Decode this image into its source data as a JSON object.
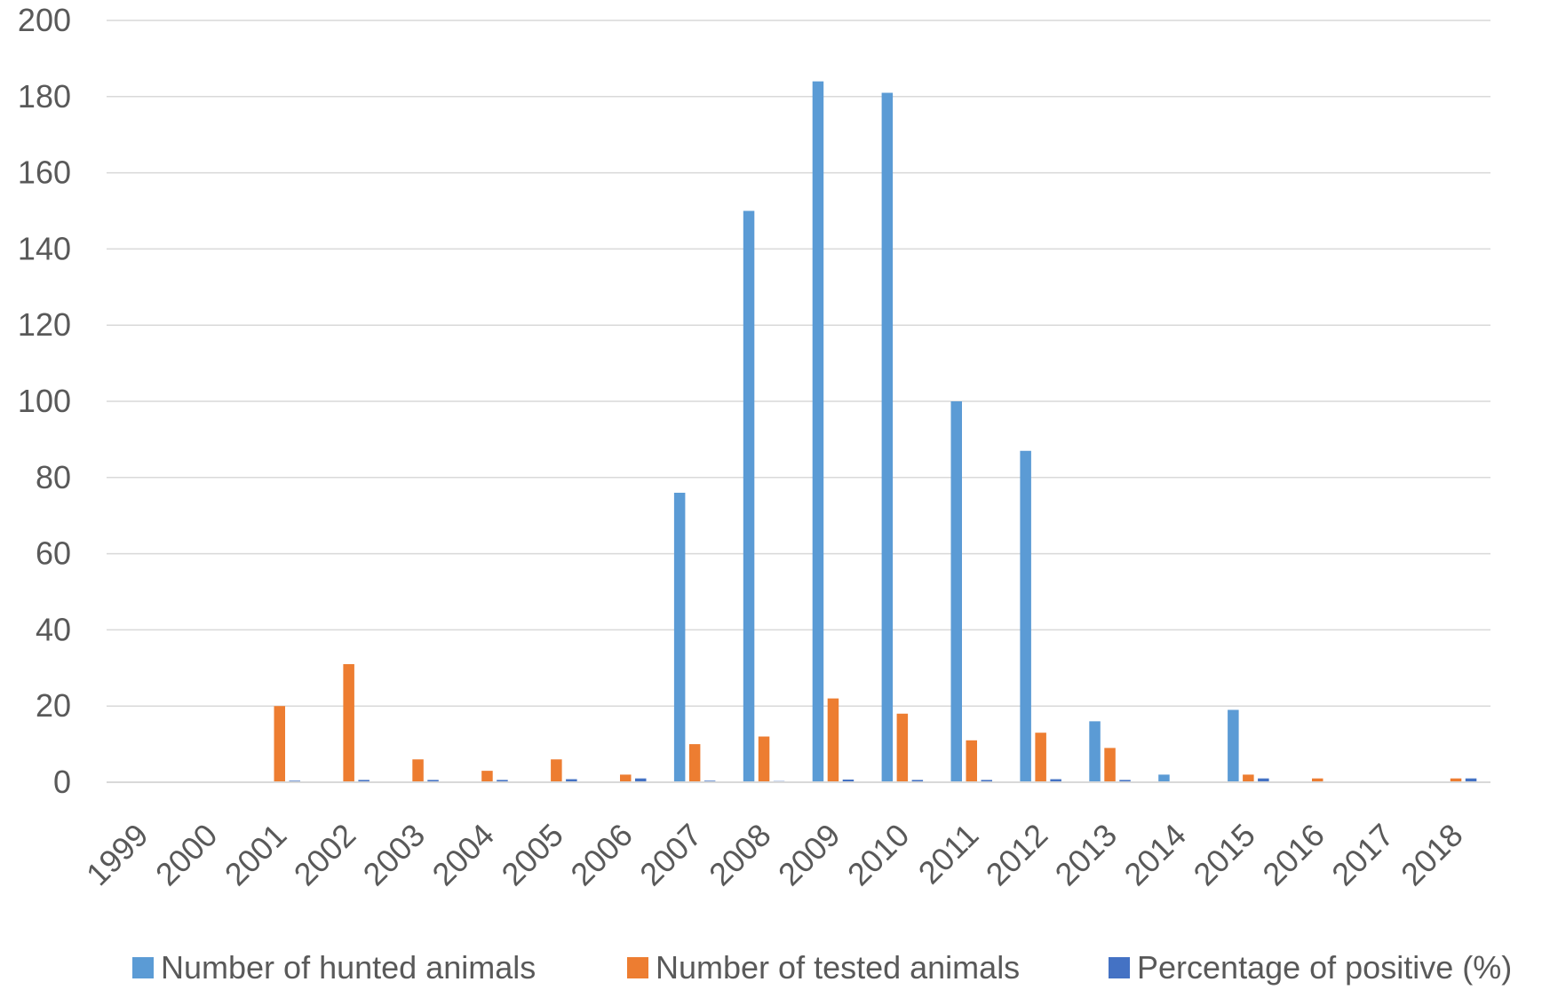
{
  "chart_data": {
    "type": "bar",
    "categories": [
      "1999",
      "2000",
      "2001",
      "2002",
      "2003",
      "2004",
      "2005",
      "2006",
      "2007",
      "2008",
      "2009",
      "2010",
      "2011",
      "2012",
      "2013",
      "2014",
      "2015",
      "2016",
      "2017",
      "2018"
    ],
    "series": [
      {
        "name": "Number of hunted animals",
        "color": "#5B9BD5",
        "values": [
          0,
          0,
          0,
          0,
          0,
          0,
          0,
          0,
          76,
          150,
          184,
          181,
          100,
          87,
          16,
          2,
          19,
          0,
          0,
          0
        ]
      },
      {
        "name": "Number of tested animals",
        "color": "#ED7D31",
        "values": [
          0,
          0,
          20,
          31,
          6,
          3,
          6,
          2,
          10,
          12,
          22,
          18,
          11,
          13,
          9,
          0,
          2,
          1,
          0,
          1
        ]
      },
      {
        "name": "Percentage of positive (%)",
        "color": "#4472C4",
        "values": [
          0,
          0,
          0.4,
          0.6,
          0.6,
          0.6,
          0.8,
          1.0,
          0.4,
          0.3,
          0.7,
          0.6,
          0.6,
          0.8,
          0.6,
          0,
          1.0,
          0,
          0,
          1.0
        ]
      }
    ],
    "ylim": [
      0,
      200
    ],
    "yticks": [
      "0",
      "20",
      "40",
      "60",
      "80",
      "100",
      "120",
      "140",
      "160",
      "180",
      "200"
    ],
    "grid": true,
    "legend_position": "bottom"
  }
}
